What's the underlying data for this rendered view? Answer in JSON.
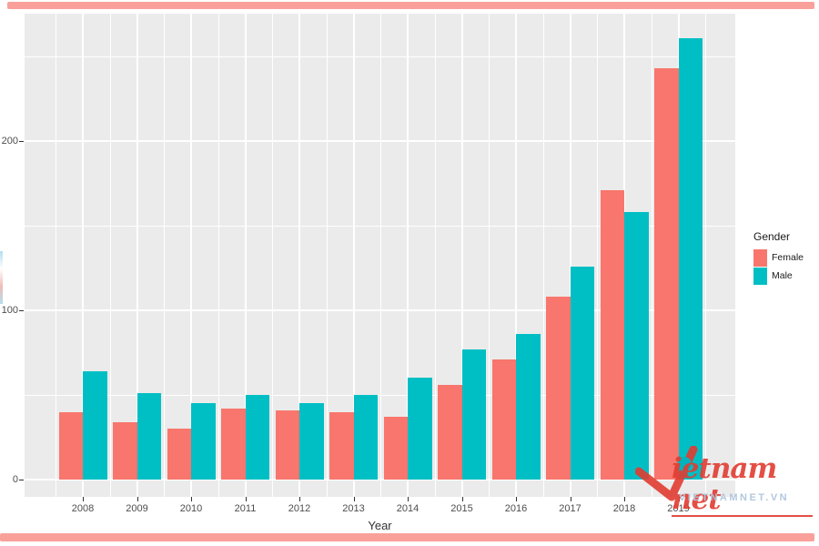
{
  "page": {
    "border_color": "#F9A09A",
    "background": "#ffffff"
  },
  "chart_data": {
    "type": "bar",
    "title": "",
    "xlabel": "Year",
    "ylabel": "",
    "categories": [
      "2008",
      "2009",
      "2010",
      "2011",
      "2012",
      "2013",
      "2014",
      "2015",
      "2016",
      "2017",
      "2018",
      "2019"
    ],
    "series": [
      {
        "name": "Female",
        "color": "#F8766D",
        "values": [
          40,
          34,
          30,
          42,
          41,
          40,
          37,
          56,
          71,
          108,
          171,
          243
        ]
      },
      {
        "name": "Male",
        "color": "#00BFC4",
        "values": [
          64,
          51,
          45,
          50,
          45,
          50,
          60,
          77,
          86,
          126,
          158,
          261
        ]
      }
    ],
    "legend_title": "Gender",
    "legend_position": "right",
    "yticks": [
      0,
      100,
      200
    ],
    "yticks_minor": [
      50,
      150,
      250
    ],
    "ylim": [
      -13,
      274
    ],
    "grid": true,
    "panel_bg": "#EBEBEB",
    "grid_color": "#FFFFFF",
    "tick_label_color": "#4D4D4D"
  },
  "watermark": {
    "script_part1": "ietnam",
    "script_part2": "net",
    "caption": "VIETNAMNET.VN",
    "red": "#E23C31",
    "teal": "#00B2BC",
    "caption_color": "#A9C3DB"
  }
}
